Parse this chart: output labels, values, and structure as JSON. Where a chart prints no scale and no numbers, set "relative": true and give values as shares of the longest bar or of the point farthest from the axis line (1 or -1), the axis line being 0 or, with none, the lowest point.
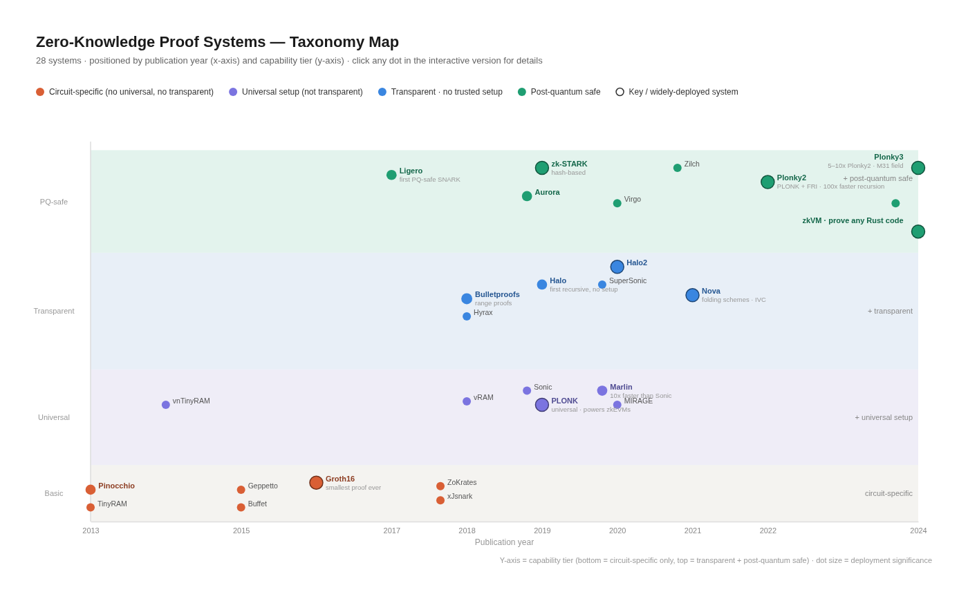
{
  "chart_data": {
    "type": "bubble",
    "title": "Zero-Knowledge Proof Systems — Taxonomy Map",
    "subtitle": "28 systems · positioned by publication year (x-axis) and capability tier (y-axis) · click any dot in the interactive version for details",
    "xlabel": "Publication year",
    "xlim": [
      2013,
      2024
    ],
    "xticks": [
      2013,
      2015,
      2017,
      2018,
      2019,
      2020,
      2021,
      2022,
      2024
    ],
    "relative": true,
    "legend": "top",
    "bands": [
      {
        "axis": "y",
        "from": 0,
        "to": 0.16,
        "label": "circuit-specific",
        "color": "#f4f3f0"
      },
      {
        "axis": "y",
        "from": 0.16,
        "to": 0.43,
        "label": "+ universal setup",
        "color": "#efedf7"
      },
      {
        "axis": "y",
        "from": 0.43,
        "to": 0.76,
        "label": "+ transparent",
        "color": "#e8eff7"
      },
      {
        "axis": "y",
        "from": 0.76,
        "to": 1.05,
        "label": "+ post-quantum safe",
        "color": "#e3f3ed"
      }
    ],
    "series": [
      {
        "name": "Circuit-specific (no universal, no transparent)",
        "color": "#d95f35",
        "x": [
          2013,
          2013,
          2015,
          2015,
          2016,
          2017.65,
          2017.65
        ],
        "values": [
          0.09,
          0.04,
          0.09,
          0.04,
          0.11,
          0.1,
          0.06
        ],
        "sizes": [
          0.6,
          0.4,
          0.4,
          0.4,
          1,
          0.4,
          0.4
        ]
      },
      {
        "name": "Universal setup (not transparent)",
        "color": "#7b74e0",
        "x": [
          2014,
          2018,
          2018.8,
          2019,
          2019.8,
          2020
        ],
        "values": [
          0.33,
          0.34,
          0.37,
          0.33,
          0.37,
          0.33
        ],
        "sizes": [
          0.4,
          0.4,
          0.4,
          1,
          0.6,
          0.4
        ]
      },
      {
        "name": "Transparent · no trusted setup",
        "color": "#3a86e0",
        "x": [
          2020,
          2019,
          2019.8,
          2018,
          2018,
          2021
        ],
        "values": [
          0.72,
          0.67,
          0.67,
          0.63,
          0.58,
          0.64
        ],
        "sizes": [
          1,
          0.6,
          0.4,
          0.7,
          0.4,
          1
        ]
      },
      {
        "name": "Post-quantum safe",
        "color": "#1f9e72",
        "x": [
          2017,
          2019,
          2018.8,
          2020.8,
          2020,
          2022,
          2024,
          2023.7,
          2024
        ],
        "values": [
          0.98,
          1,
          0.92,
          1,
          0.9,
          0.96,
          1,
          0.9,
          0.82
        ],
        "sizes": [
          0.6,
          1,
          0.6,
          0.4,
          0.4,
          1,
          1,
          0.4,
          1
        ]
      }
    ],
    "annotations": [
      "Key / widely-deployed system",
      "Y-axis = capability tier (bottom = circuit-specific only, top = transparent + post-quantum safe) · dot size = deployment significance",
      "Basic",
      "Universal",
      "Transparent",
      "PQ-safe",
      {
        "text": "Pinocchio",
        "x": 2013,
        "y": 0.09
      },
      {
        "text": "TinyRAM",
        "x": 2013,
        "y": 0.04
      },
      {
        "text": "Geppetto",
        "x": 2015,
        "y": 0.09
      },
      {
        "text": "Buffet",
        "x": 2015,
        "y": 0.04
      },
      {
        "text": "Groth16\nsmallest proof ever",
        "x": 2016,
        "y": 0.11
      },
      {
        "text": "ZoKrates",
        "x": 2017.65,
        "y": 0.1
      },
      {
        "text": "xJsnark",
        "x": 2017.65,
        "y": 0.06
      },
      {
        "text": "vnTinyRAM",
        "x": 2014,
        "y": 0.33
      },
      {
        "text": "vRAM",
        "x": 2018,
        "y": 0.34
      },
      {
        "text": "Sonic",
        "x": 2018.8,
        "y": 0.37
      },
      {
        "text": "PLONK\nuniversal · powers zkEVMs",
        "x": 2019,
        "y": 0.33
      },
      {
        "text": "Marlin\n10x faster than Sonic",
        "x": 2019.8,
        "y": 0.37
      },
      {
        "text": "MIRAGE",
        "x": 2020,
        "y": 0.33
      },
      {
        "text": "Halo2",
        "x": 2020,
        "y": 0.72
      },
      {
        "text": "Halo\nfirst recursive, no setup",
        "x": 2019,
        "y": 0.67
      },
      {
        "text": "SuperSonic",
        "x": 2019.8,
        "y": 0.67
      },
      {
        "text": "Bulletproofs\nrange proofs",
        "x": 2018,
        "y": 0.63
      },
      {
        "text": "Hyrax",
        "x": 2018,
        "y": 0.58
      },
      {
        "text": "Nova\nfolding schemes · IVC",
        "x": 2021,
        "y": 0.64
      },
      {
        "text": "Ligero\nfirst PQ-safe SNARK",
        "x": 2017,
        "y": 0.98
      },
      {
        "text": "zk-STARK\nhash-based",
        "x": 2019,
        "y": 1
      },
      {
        "text": "Aurora",
        "x": 2018.8,
        "y": 0.92
      },
      {
        "text": "Zilch",
        "x": 2020.8,
        "y": 1
      },
      {
        "text": "Virgo",
        "x": 2020,
        "y": 0.9
      },
      {
        "text": "Plonky2\nPLONK + FRI · 100x faster recursion",
        "x": 2022,
        "y": 0.96
      },
      {
        "text": "Plonky3\n5–10x Plonky2 · M31 field",
        "x": 2024,
        "y": 1
      },
      {
        "text": "zkVM · prove any Rust code",
        "x": 2024,
        "y": 0.82
      }
    ]
  }
}
